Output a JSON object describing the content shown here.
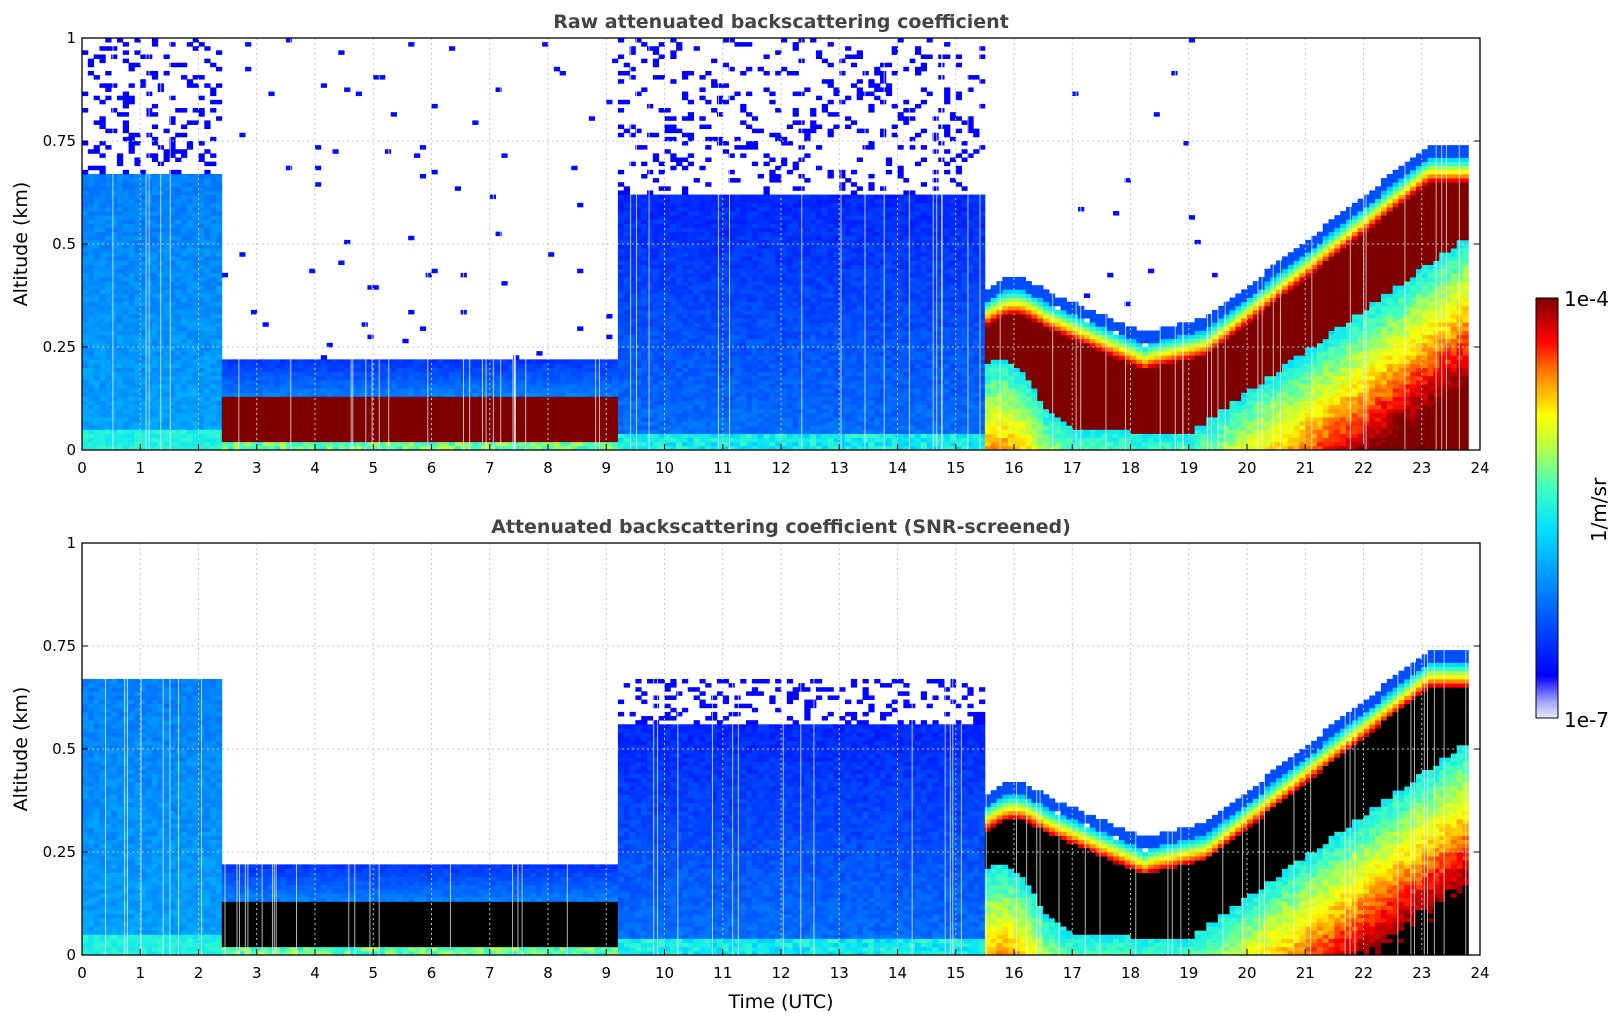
{
  "chart_data": [
    {
      "type": "heatmap",
      "title": "Raw attenuated backscattering coefficient",
      "xlabel": "",
      "ylabel": "Altitude (km)",
      "xlim": [
        0,
        24
      ],
      "ylim": [
        0,
        1
      ],
      "x_ticks": [
        0,
        1,
        2,
        3,
        4,
        5,
        6,
        7,
        8,
        9,
        10,
        11,
        12,
        13,
        14,
        15,
        16,
        17,
        18,
        19,
        20,
        21,
        22,
        23,
        24
      ],
      "y_ticks": [
        0,
        0.25,
        0.5,
        0.75,
        1
      ],
      "y_tick_labels": [
        "0",
        "0.25",
        "0.5",
        "0.75",
        "1"
      ],
      "grid": true,
      "screened": false,
      "regimes": [
        {
          "t0": 0.0,
          "t1": 2.4,
          "signal_top_km": 0.67,
          "noise_above": true
        },
        {
          "t0": 2.4,
          "t1": 9.3,
          "signal_top_km": 0.22,
          "dense_layer_km": [
            0.02,
            0.13
          ]
        },
        {
          "t0": 9.3,
          "t1": 15.5,
          "signal_top_km": 0.6,
          "noise_above": true
        },
        {
          "t0": 15.5,
          "t1": 23.8,
          "dense_layer_km": "0.05–0.30 rising to 0.40–0.65"
        }
      ]
    },
    {
      "type": "heatmap",
      "title": "Attenuated backscattering coefficient (SNR-screened)",
      "xlabel": "Time (UTC)",
      "ylabel": "Altitude (km)",
      "xlim": [
        0,
        24
      ],
      "ylim": [
        0,
        1
      ],
      "x_ticks": [
        0,
        1,
        2,
        3,
        4,
        5,
        6,
        7,
        8,
        9,
        10,
        11,
        12,
        13,
        14,
        15,
        16,
        17,
        18,
        19,
        20,
        21,
        22,
        23,
        24
      ],
      "y_ticks": [
        0,
        0.25,
        0.5,
        0.75,
        1
      ],
      "y_tick_labels": [
        "0",
        "0.25",
        "0.5",
        "0.75",
        "1"
      ],
      "grid": true,
      "screened": true,
      "regimes": [
        {
          "t0": 0.0,
          "t1": 2.4,
          "signal_top_km": 0.67
        },
        {
          "t0": 2.4,
          "t1": 9.1,
          "signal_top_km": 0.22,
          "saturated_layer_km": [
            0.0,
            0.13
          ]
        },
        {
          "t0": 9.1,
          "t1": 15.5,
          "signal_top_km": 0.56
        },
        {
          "t0": 15.5,
          "t1": 23.8,
          "saturated_layer_km": "0.05–0.28 rising to 0.40–0.62"
        }
      ]
    }
  ],
  "colorbar": {
    "max_label": "1e-4",
    "min_label": "1e-7",
    "label": "1/m/sr",
    "scale": "log",
    "range": [
      1e-07,
      0.0001
    ],
    "colormap": "jet",
    "saturation_color_screened": "#000000",
    "saturation_color_raw": "#7f0000"
  }
}
